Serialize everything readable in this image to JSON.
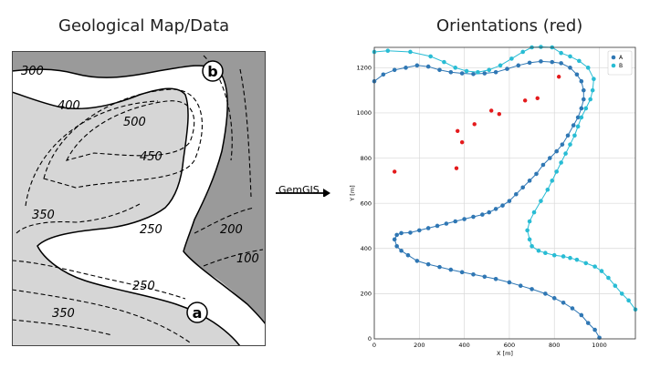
{
  "titles": {
    "left": "Geological Map/Data",
    "right": "Orientations (red)"
  },
  "arrow_label": "GemGIS",
  "map": {
    "contour_labels": [
      "300",
      "400",
      "500",
      "450",
      "350",
      "250",
      "200",
      "100",
      "250",
      "350"
    ],
    "point_labels": [
      "b",
      "a"
    ],
    "colors": {
      "layer_top": "#9a9a9a",
      "layer_mid": "#ffffff",
      "layer_low": "#d6d6d6"
    }
  },
  "chart_data": {
    "type": "scatter",
    "xlabel": "X [m]",
    "ylabel": "Y [m]",
    "xlim": [
      0,
      1160
    ],
    "ylim": [
      0,
      1290
    ],
    "xticks": [
      0,
      200,
      400,
      600,
      800,
      1000
    ],
    "yticks": [
      0,
      200,
      400,
      600,
      800,
      1000,
      1200
    ],
    "grid": true,
    "legend_placement": "top-right",
    "series": [
      {
        "name": "A",
        "color": "#2f77b4",
        "points": [
          [
            0,
            1140
          ],
          [
            40,
            1170
          ],
          [
            90,
            1190
          ],
          [
            140,
            1200
          ],
          [
            190,
            1210
          ],
          [
            240,
            1205
          ],
          [
            290,
            1190
          ],
          [
            340,
            1180
          ],
          [
            390,
            1175
          ],
          [
            440,
            1172
          ],
          [
            490,
            1175
          ],
          [
            540,
            1180
          ],
          [
            590,
            1195
          ],
          [
            640,
            1210
          ],
          [
            690,
            1222
          ],
          [
            740,
            1228
          ],
          [
            790,
            1225
          ],
          [
            830,
            1220
          ],
          [
            870,
            1200
          ],
          [
            900,
            1170
          ],
          [
            920,
            1140
          ],
          [
            930,
            1100
          ],
          [
            930,
            1060
          ],
          [
            920,
            1020
          ],
          [
            905,
            980
          ],
          [
            885,
            945
          ],
          [
            860,
            900
          ],
          [
            835,
            860
          ],
          [
            810,
            830
          ],
          [
            780,
            800
          ],
          [
            750,
            770
          ],
          [
            720,
            730
          ],
          [
            690,
            700
          ],
          [
            660,
            670
          ],
          [
            630,
            640
          ],
          [
            600,
            610
          ],
          [
            570,
            590
          ],
          [
            540,
            575
          ],
          [
            510,
            560
          ],
          [
            480,
            550
          ],
          [
            440,
            540
          ],
          [
            400,
            530
          ],
          [
            360,
            520
          ],
          [
            320,
            510
          ],
          [
            280,
            500
          ],
          [
            240,
            490
          ],
          [
            200,
            480
          ],
          [
            160,
            470
          ],
          [
            120,
            468
          ],
          [
            100,
            460
          ],
          [
            90,
            440
          ],
          [
            100,
            410
          ],
          [
            120,
            390
          ],
          [
            150,
            370
          ],
          [
            190,
            345
          ],
          [
            240,
            330
          ],
          [
            290,
            318
          ],
          [
            340,
            306
          ],
          [
            390,
            295
          ],
          [
            440,
            285
          ],
          [
            490,
            275
          ],
          [
            540,
            265
          ],
          [
            600,
            250
          ],
          [
            650,
            235
          ],
          [
            700,
            220
          ],
          [
            760,
            200
          ],
          [
            800,
            180
          ],
          [
            840,
            160
          ],
          [
            880,
            135
          ],
          [
            920,
            105
          ],
          [
            950,
            70
          ],
          [
            980,
            40
          ],
          [
            1000,
            5
          ]
        ]
      },
      {
        "name": "B",
        "color": "#28bcd4",
        "points": [
          [
            0,
            1270
          ],
          [
            60,
            1275
          ],
          [
            160,
            1270
          ],
          [
            250,
            1250
          ],
          [
            310,
            1225
          ],
          [
            360,
            1200
          ],
          [
            410,
            1185
          ],
          [
            460,
            1180
          ],
          [
            510,
            1190
          ],
          [
            560,
            1210
          ],
          [
            610,
            1240
          ],
          [
            660,
            1270
          ],
          [
            700,
            1290
          ],
          [
            740,
            1292
          ],
          [
            790,
            1290
          ],
          [
            830,
            1265
          ],
          [
            870,
            1250
          ],
          [
            910,
            1230
          ],
          [
            950,
            1200
          ],
          [
            975,
            1150
          ],
          [
            970,
            1100
          ],
          [
            960,
            1060
          ],
          [
            940,
            1020
          ],
          [
            920,
            980
          ],
          [
            905,
            940
          ],
          [
            890,
            900
          ],
          [
            870,
            860
          ],
          [
            850,
            820
          ],
          [
            830,
            780
          ],
          [
            810,
            740
          ],
          [
            790,
            700
          ],
          [
            770,
            660
          ],
          [
            740,
            610
          ],
          [
            710,
            560
          ],
          [
            690,
            520
          ],
          [
            680,
            480
          ],
          [
            690,
            440
          ],
          [
            700,
            410
          ],
          [
            730,
            390
          ],
          [
            760,
            380
          ],
          [
            800,
            370
          ],
          [
            840,
            365
          ],
          [
            870,
            358
          ],
          [
            900,
            350
          ],
          [
            940,
            335
          ],
          [
            980,
            320
          ],
          [
            1010,
            300
          ],
          [
            1040,
            270
          ],
          [
            1070,
            235
          ],
          [
            1100,
            200
          ],
          [
            1130,
            170
          ],
          [
            1160,
            130
          ]
        ]
      },
      {
        "name": "",
        "color": "#e41a1c",
        "points": [
          [
            90,
            740
          ],
          [
            365,
            755
          ],
          [
            370,
            920
          ],
          [
            390,
            870
          ],
          [
            445,
            950
          ],
          [
            520,
            1010
          ],
          [
            555,
            995
          ],
          [
            670,
            1055
          ],
          [
            725,
            1065
          ],
          [
            820,
            1160
          ]
        ]
      }
    ]
  }
}
